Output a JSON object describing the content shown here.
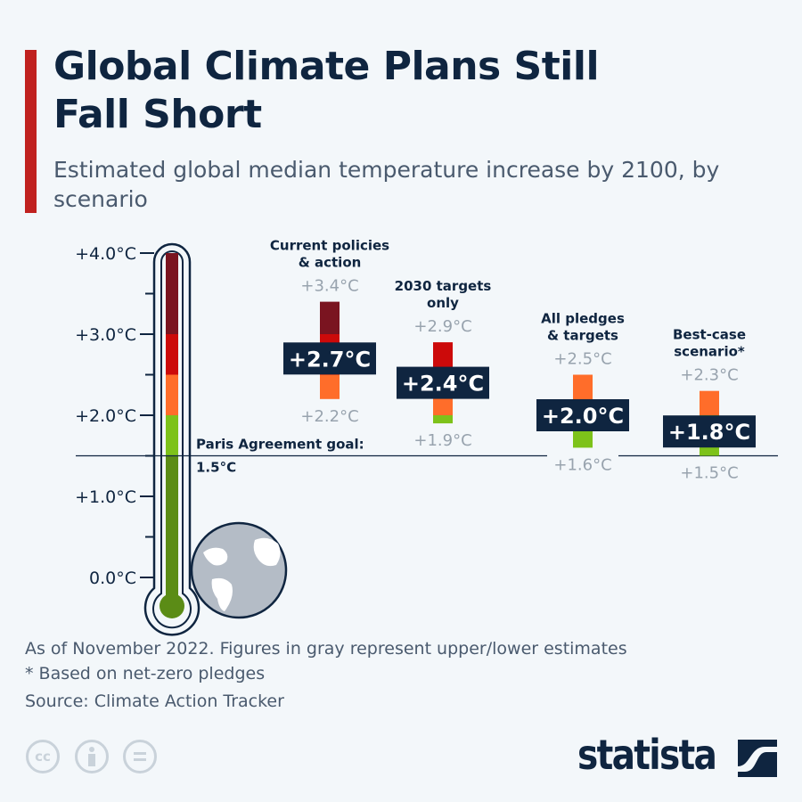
{
  "header": {
    "title": "Global Climate Plans Still Fall Short",
    "subtitle": "Estimated global median temperature increase by 2100, by scenario"
  },
  "chart_data": {
    "type": "range-bar",
    "ylim": [
      0,
      4
    ],
    "yticks": [
      "0.0°C",
      "+1.0°C",
      "+2.0°C",
      "+3.0°C",
      "+4.0°C"
    ],
    "reference_line": {
      "value": 1.5,
      "label_line1": "Paris Agreement goal:",
      "label_line2": "1.5°C"
    },
    "color_bands": [
      {
        "from": 3.0,
        "to": 4.0,
        "color": "#7a1420"
      },
      {
        "from": 2.5,
        "to": 3.0,
        "color": "#cc0a0a"
      },
      {
        "from": 2.0,
        "to": 2.5,
        "color": "#ff6d2a"
      },
      {
        "from": 1.5,
        "to": 2.0,
        "color": "#7dc21a"
      },
      {
        "from": 0,
        "to": 1.5,
        "color": "#5b8c16"
      }
    ],
    "series": [
      {
        "category_line1": "Current policies",
        "category_line2": "& action",
        "median": 2.7,
        "median_label": "+2.7°C",
        "high": 3.4,
        "high_label": "+3.4°C",
        "low": 2.2,
        "low_label": "+2.2°C"
      },
      {
        "category_line1": "2030 targets",
        "category_line2": "only",
        "median": 2.4,
        "median_label": "+2.4°C",
        "high": 2.9,
        "high_label": "+2.9°C",
        "low": 1.9,
        "low_label": "+1.9°C"
      },
      {
        "category_line1": "All pledges",
        "category_line2": "& targets",
        "median": 2.0,
        "median_label": "+2.0°C",
        "high": 2.5,
        "high_label": "+2.5°C",
        "low": 1.6,
        "low_label": "+1.6°C"
      },
      {
        "category_line1": "Best-case",
        "category_line2": "scenario*",
        "median": 1.8,
        "median_label": "+1.8°C",
        "high": 2.3,
        "high_label": "+2.3°C",
        "low": 1.5,
        "low_label": "+1.5°C"
      }
    ]
  },
  "footer": {
    "note": "As of November 2022. Figures in gray represent upper/lower estimates",
    "asterisk": "* Based on net-zero pledges",
    "source": "Source: Climate Action Tracker",
    "cc_label": "cc",
    "brand": "statista"
  }
}
